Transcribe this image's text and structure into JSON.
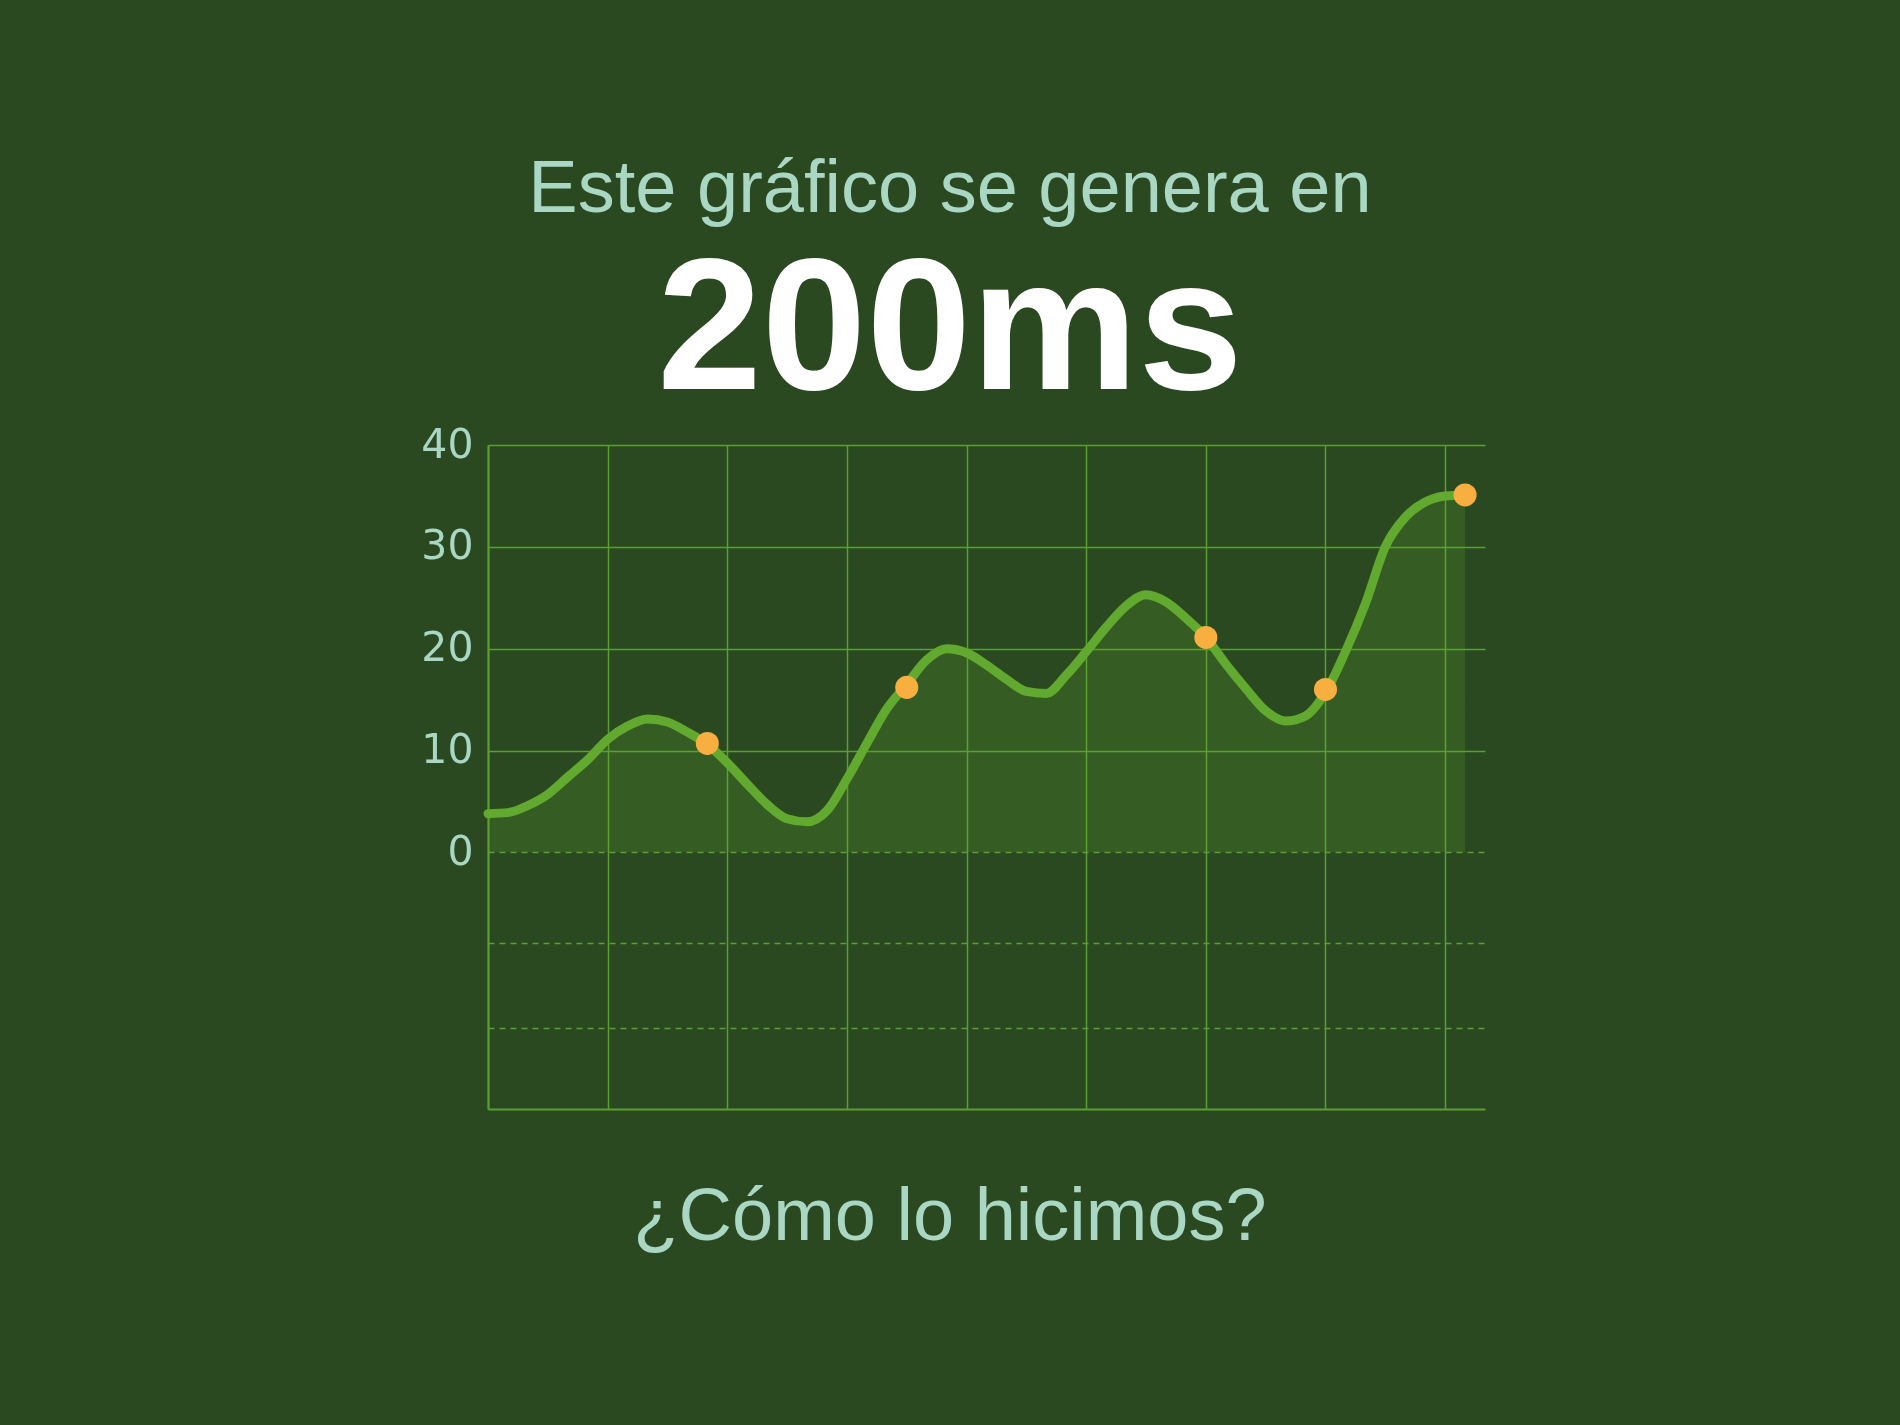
{
  "chart_data": {
    "type": "area",
    "title": "Este gráfico se genera en",
    "subtitle": "200ms",
    "annotations": [
      "¿Cómo lo hicimos?"
    ],
    "categories": [
      null,
      null,
      null,
      null,
      null,
      null,
      null,
      null,
      null,
      null,
      null,
      null,
      null,
      null,
      null,
      null,
      null,
      null,
      null,
      null,
      null,
      null,
      null,
      null,
      null,
      null,
      null,
      null,
      null,
      null,
      null,
      null,
      null,
      null,
      null,
      null,
      null,
      null,
      null,
      null,
      null,
      null,
      null,
      null,
      null,
      null,
      null,
      null,
      null,
      null
    ],
    "series": [
      {
        "type": "scatter",
        "color": "#f8af3f",
        "marker": "circle",
        "values": [
          null,
          null,
          null,
          null,
          null,
          null,
          null,
          null,
          null,
          null,
          null,
          10.7,
          null,
          null,
          null,
          null,
          null,
          null,
          null,
          null,
          null,
          16.2,
          null,
          null,
          null,
          null,
          null,
          null,
          null,
          null,
          null,
          null,
          null,
          null,
          null,
          null,
          21.1,
          null,
          null,
          null,
          null,
          null,
          16.0,
          null,
          null,
          null,
          null,
          null,
          null,
          35.1
        ]
      },
      {
        "color": "#62a92f",
        "values": [
          3.8,
          3.9,
          4.6,
          5.7,
          7.4,
          9.1,
          11.1,
          12.4,
          13.1,
          12.8,
          11.8,
          10.6,
          8.8,
          6.7,
          4.7,
          3.3,
          3.0,
          4.1,
          7.2,
          10.7,
          14.1,
          16.5,
          18.9,
          20.0,
          19.6,
          18.4,
          17.0,
          15.8,
          15.6,
          17.4,
          19.7,
          22.1,
          24.2,
          25.3,
          24.6,
          23.0,
          21.1,
          18.5,
          16.1,
          13.9,
          12.9,
          13.4,
          15.7,
          19.7,
          24.4,
          30.0,
          32.9,
          34.4,
          35.0,
          35.1
        ]
      }
    ],
    "ylim": [
      -25.2,
      40
    ],
    "yticks": [
      {
        "value": -17.2,
        "label": null
      },
      {
        "value": -8.9,
        "label": null
      },
      0,
      10,
      20,
      30,
      40
    ],
    "grid": true,
    "tick_labels": "y"
  }
}
